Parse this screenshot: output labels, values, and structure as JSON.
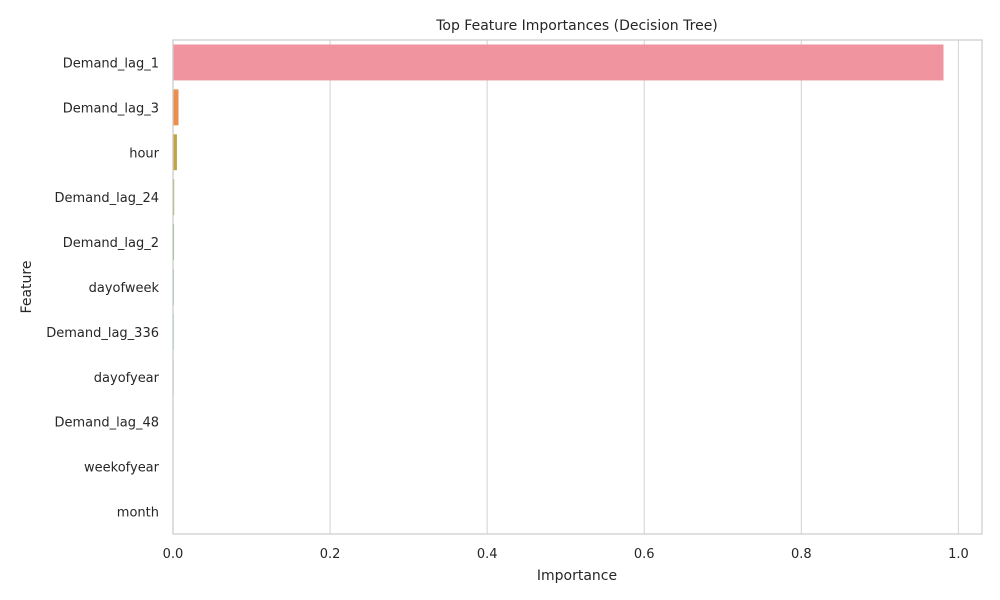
{
  "chart_data": {
    "type": "bar",
    "orientation": "horizontal",
    "title": "Top Feature Importances (Decision Tree)",
    "xlabel": "Importance",
    "ylabel": "Feature",
    "xlim": [
      0,
      1.03
    ],
    "xticks": [
      0.0,
      0.2,
      0.4,
      0.6,
      0.8,
      1.0
    ],
    "xtick_labels": [
      "0.0",
      "0.2",
      "0.4",
      "0.6",
      "0.8",
      "1.0"
    ],
    "grid": "x",
    "categories": [
      "Demand_lag_1",
      "Demand_lag_3",
      "hour",
      "Demand_lag_24",
      "Demand_lag_2",
      "dayofweek",
      "Demand_lag_336",
      "dayofyear",
      "Demand_lag_48",
      "weekofyear",
      "month"
    ],
    "values": [
      0.981,
      0.007,
      0.005,
      0.0015,
      0.0012,
      0.001,
      0.0009,
      0.0008,
      0.0007,
      0.0006,
      0.0005
    ],
    "colors": [
      "#f0949f",
      "#eb8f4f",
      "#c2a440",
      "#9eae3f",
      "#5fba45",
      "#4ebb8c",
      "#4ab7ad",
      "#4db3cb",
      "#6ea8e8",
      "#b196f0",
      "#f07fd2"
    ]
  }
}
